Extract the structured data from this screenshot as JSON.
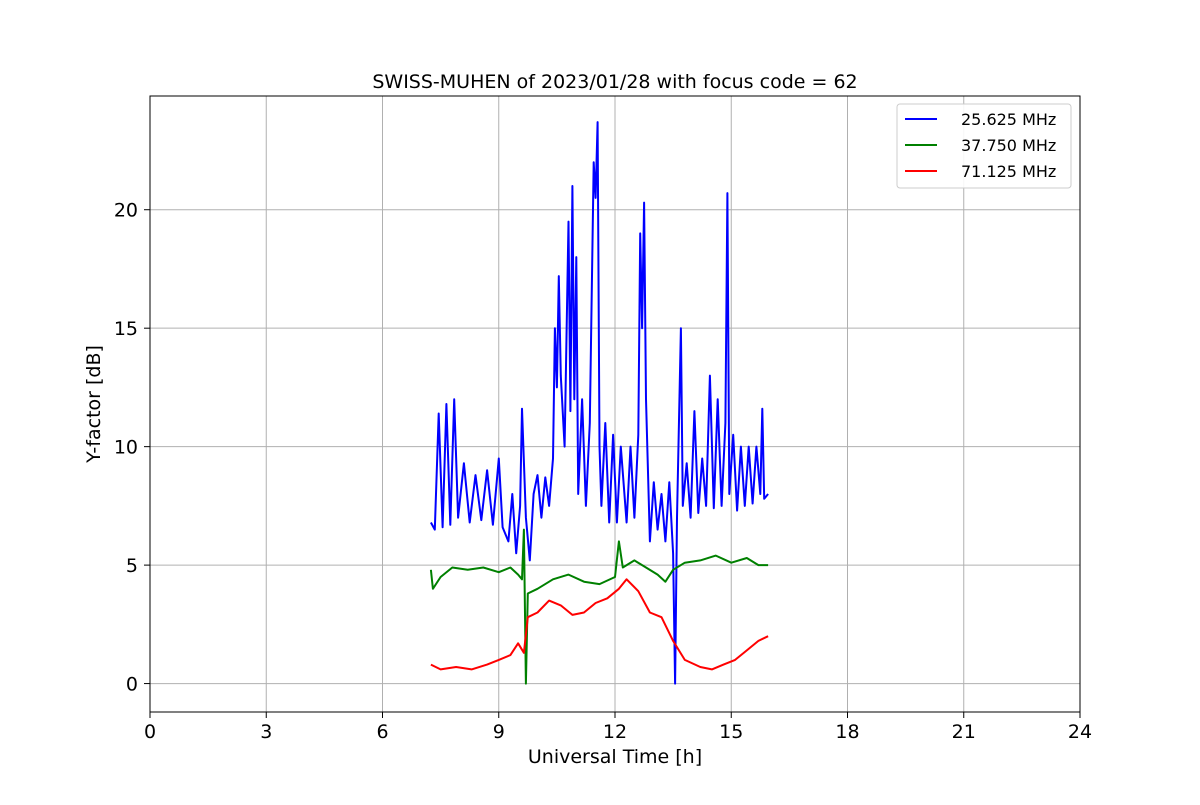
{
  "chart_data": {
    "type": "line",
    "title": "SWISS-MUHEN of 2023/01/28 with focus code = 62",
    "xlabel": "Universal Time [h]",
    "ylabel": "Y-factor [dB]",
    "xlim": [
      0,
      24
    ],
    "ylim": [
      -1.2,
      24.8
    ],
    "xticks": [
      0,
      3,
      6,
      9,
      12,
      15,
      18,
      21,
      24
    ],
    "xtick_labels": [
      "0",
      "3",
      "6",
      "9",
      "12",
      "15",
      "18",
      "21",
      "24"
    ],
    "yticks": [
      0,
      5,
      10,
      15,
      20
    ],
    "ytick_labels": [
      "0",
      "5",
      "10",
      "15",
      "20"
    ],
    "grid": true,
    "legend_position": "top-right",
    "series": [
      {
        "name": "25.625 MHz",
        "color": "#0000ff",
        "points": [
          [
            7.25,
            6.8
          ],
          [
            7.35,
            6.5
          ],
          [
            7.45,
            11.4
          ],
          [
            7.55,
            6.6
          ],
          [
            7.65,
            11.8
          ],
          [
            7.75,
            6.7
          ],
          [
            7.85,
            12.0
          ],
          [
            7.95,
            7.0
          ],
          [
            8.1,
            9.3
          ],
          [
            8.25,
            6.8
          ],
          [
            8.4,
            8.8
          ],
          [
            8.55,
            6.9
          ],
          [
            8.7,
            9.0
          ],
          [
            8.85,
            6.7
          ],
          [
            9.0,
            9.5
          ],
          [
            9.1,
            6.6
          ],
          [
            9.25,
            6.0
          ],
          [
            9.35,
            8.0
          ],
          [
            9.45,
            5.5
          ],
          [
            9.55,
            7.5
          ],
          [
            9.6,
            11.6
          ],
          [
            9.7,
            7.0
          ],
          [
            9.8,
            5.2
          ],
          [
            9.9,
            8.0
          ],
          [
            10.0,
            8.8
          ],
          [
            10.1,
            7.0
          ],
          [
            10.2,
            8.7
          ],
          [
            10.3,
            7.5
          ],
          [
            10.4,
            9.5
          ],
          [
            10.45,
            15.0
          ],
          [
            10.5,
            12.5
          ],
          [
            10.55,
            17.2
          ],
          [
            10.6,
            13.0
          ],
          [
            10.7,
            10.0
          ],
          [
            10.8,
            19.5
          ],
          [
            10.85,
            11.5
          ],
          [
            10.9,
            21.0
          ],
          [
            10.95,
            12.0
          ],
          [
            11.0,
            18.0
          ],
          [
            11.05,
            8.0
          ],
          [
            11.15,
            12.0
          ],
          [
            11.25,
            7.5
          ],
          [
            11.35,
            11.0
          ],
          [
            11.45,
            22.0
          ],
          [
            11.5,
            20.5
          ],
          [
            11.55,
            23.7
          ],
          [
            11.6,
            10.0
          ],
          [
            11.65,
            7.5
          ],
          [
            11.75,
            11.0
          ],
          [
            11.85,
            6.8
          ],
          [
            11.95,
            10.5
          ],
          [
            12.05,
            6.8
          ],
          [
            12.15,
            10.0
          ],
          [
            12.3,
            6.8
          ],
          [
            12.4,
            10.0
          ],
          [
            12.5,
            7.0
          ],
          [
            12.6,
            10.5
          ],
          [
            12.65,
            19.0
          ],
          [
            12.7,
            15.0
          ],
          [
            12.75,
            20.3
          ],
          [
            12.8,
            12.0
          ],
          [
            12.9,
            6.0
          ],
          [
            13.0,
            8.5
          ],
          [
            13.1,
            6.5
          ],
          [
            13.2,
            8.0
          ],
          [
            13.3,
            6.0
          ],
          [
            13.4,
            8.5
          ],
          [
            13.5,
            5.5
          ],
          [
            13.55,
            0.0
          ],
          [
            13.6,
            7.0
          ],
          [
            13.7,
            15.0
          ],
          [
            13.75,
            7.5
          ],
          [
            13.85,
            9.3
          ],
          [
            13.95,
            7.0
          ],
          [
            14.05,
            11.5
          ],
          [
            14.15,
            7.2
          ],
          [
            14.25,
            9.5
          ],
          [
            14.35,
            7.5
          ],
          [
            14.45,
            13.0
          ],
          [
            14.55,
            7.4
          ],
          [
            14.65,
            12.0
          ],
          [
            14.75,
            7.5
          ],
          [
            14.85,
            11.0
          ],
          [
            14.9,
            20.7
          ],
          [
            14.95,
            8.0
          ],
          [
            15.05,
            10.5
          ],
          [
            15.15,
            7.3
          ],
          [
            15.25,
            10.0
          ],
          [
            15.35,
            7.5
          ],
          [
            15.45,
            10.0
          ],
          [
            15.55,
            7.6
          ],
          [
            15.65,
            10.0
          ],
          [
            15.75,
            8.0
          ],
          [
            15.8,
            11.6
          ],
          [
            15.85,
            7.8
          ],
          [
            15.95,
            8.0
          ]
        ]
      },
      {
        "name": "37.750 MHz",
        "color": "#008000",
        "points": [
          [
            7.25,
            4.8
          ],
          [
            7.3,
            4.0
          ],
          [
            7.5,
            4.5
          ],
          [
            7.8,
            4.9
          ],
          [
            8.2,
            4.8
          ],
          [
            8.6,
            4.9
          ],
          [
            9.0,
            4.7
          ],
          [
            9.3,
            4.9
          ],
          [
            9.5,
            4.6
          ],
          [
            9.6,
            4.4
          ],
          [
            9.65,
            6.5
          ],
          [
            9.7,
            0.0
          ],
          [
            9.75,
            3.8
          ],
          [
            10.0,
            4.0
          ],
          [
            10.4,
            4.4
          ],
          [
            10.8,
            4.6
          ],
          [
            11.2,
            4.3
          ],
          [
            11.6,
            4.2
          ],
          [
            12.0,
            4.5
          ],
          [
            12.1,
            6.0
          ],
          [
            12.2,
            4.9
          ],
          [
            12.5,
            5.2
          ],
          [
            12.8,
            4.9
          ],
          [
            13.1,
            4.6
          ],
          [
            13.3,
            4.3
          ],
          [
            13.5,
            4.8
          ],
          [
            13.8,
            5.1
          ],
          [
            14.2,
            5.2
          ],
          [
            14.6,
            5.4
          ],
          [
            15.0,
            5.1
          ],
          [
            15.4,
            5.3
          ],
          [
            15.7,
            5.0
          ],
          [
            15.95,
            5.0
          ]
        ]
      },
      {
        "name": "71.125 MHz",
        "color": "#ff0000",
        "points": [
          [
            7.25,
            0.8
          ],
          [
            7.5,
            0.6
          ],
          [
            7.9,
            0.7
          ],
          [
            8.3,
            0.6
          ],
          [
            8.7,
            0.8
          ],
          [
            9.0,
            1.0
          ],
          [
            9.3,
            1.2
          ],
          [
            9.5,
            1.7
          ],
          [
            9.65,
            1.3
          ],
          [
            9.75,
            2.8
          ],
          [
            10.0,
            3.0
          ],
          [
            10.3,
            3.5
          ],
          [
            10.6,
            3.3
          ],
          [
            10.9,
            2.9
          ],
          [
            11.2,
            3.0
          ],
          [
            11.5,
            3.4
          ],
          [
            11.8,
            3.6
          ],
          [
            12.1,
            4.0
          ],
          [
            12.3,
            4.4
          ],
          [
            12.6,
            3.9
          ],
          [
            12.9,
            3.0
          ],
          [
            13.2,
            2.8
          ],
          [
            13.5,
            1.8
          ],
          [
            13.8,
            1.0
          ],
          [
            14.2,
            0.7
          ],
          [
            14.5,
            0.6
          ],
          [
            14.8,
            0.8
          ],
          [
            15.1,
            1.0
          ],
          [
            15.4,
            1.4
          ],
          [
            15.7,
            1.8
          ],
          [
            15.95,
            2.0
          ]
        ]
      }
    ]
  }
}
